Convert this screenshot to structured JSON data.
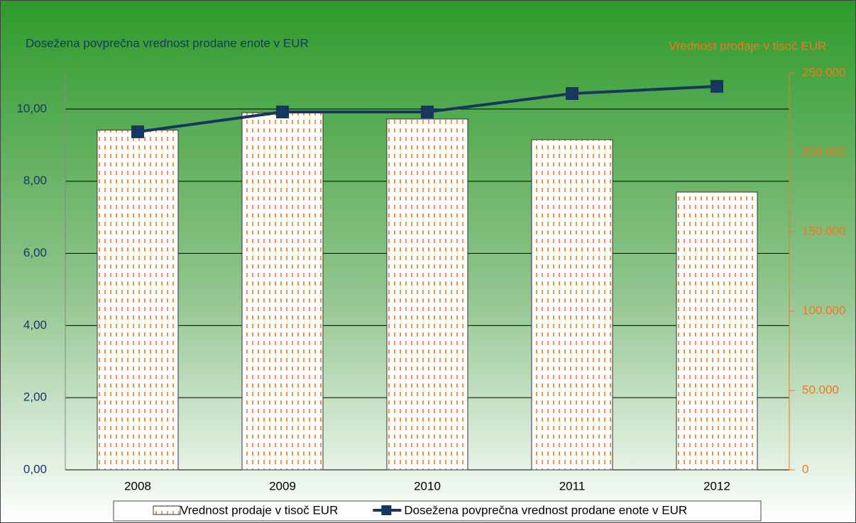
{
  "chart_data": {
    "type": "combo",
    "ylabel": "Dosežena povprečna vrednost prodane enote v EUR",
    "y2label": "Vrednost prodaje v tisoč EUR",
    "categories": [
      "2008",
      "2009",
      "2010",
      "2011",
      "2012"
    ],
    "series": [
      {
        "name": "Vrednost prodaje v tisoč EUR",
        "type": "bar",
        "axis": "y2",
        "color": "#f07820",
        "values": [
          214000,
          225000,
          221000,
          208000,
          175000
        ]
      },
      {
        "name": "Dosežena povprečna vrednost prodane enote v EUR",
        "type": "line",
        "axis": "y",
        "color": "#17375e",
        "values": [
          9.37,
          9.92,
          9.92,
          10.43,
          10.63
        ]
      }
    ],
    "ylim": [
      0,
      11
    ],
    "yticks": [
      {
        "value": 0,
        "label": "0,00"
      },
      {
        "value": 2,
        "label": "2,00"
      },
      {
        "value": 4,
        "label": "4,00"
      },
      {
        "value": 6,
        "label": "6,00"
      },
      {
        "value": 8,
        "label": "8,00"
      },
      {
        "value": 10,
        "label": "10,00"
      }
    ],
    "y2lim": [
      0,
      250000
    ],
    "y2ticks": [
      0,
      {
        "value": 50000,
        "label": "50.000"
      },
      {
        "value": 100000,
        "label": "100.000"
      },
      {
        "value": 150000,
        "label": "150.000"
      },
      {
        "value": 200000,
        "label": "200.000"
      },
      {
        "value": 250000,
        "label": "250.000"
      }
    ],
    "grid": true
  }
}
